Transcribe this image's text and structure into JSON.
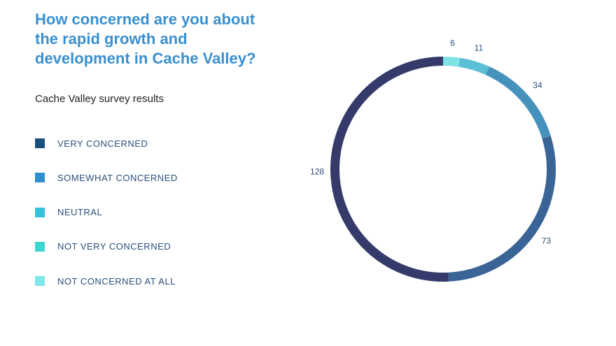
{
  "chart_data": {
    "type": "donut",
    "title": "How concerned are you about the rapid growth and development in Cache Valley?",
    "subtitle": "Cache Valley survey results",
    "categories": [
      "VERY CONCERNED",
      "SOMEWHAT CONCERNED",
      "NEUTRAL",
      "NOT VERY CONCERNED",
      "NOT CONCERNED AT ALL"
    ],
    "values": [
      128,
      73,
      34,
      11,
      6
    ],
    "colors": [
      "#343a6a",
      "#3a6396",
      "#4592bd",
      "#5bbfd6",
      "#7fe3e6"
    ],
    "legend_colors": [
      "#1a4f7d",
      "#2e8fd0",
      "#35c0e0",
      "#3dd6d0",
      "#7ee8e8"
    ]
  }
}
